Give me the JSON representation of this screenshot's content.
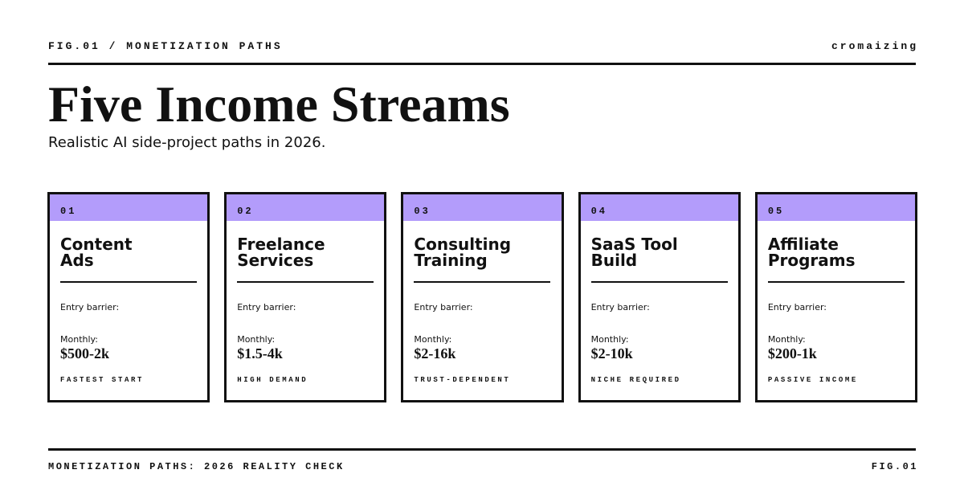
{
  "header": {
    "figure_label": "FIG.01 / MONETIZATION PATHS",
    "brand": "cromaizing",
    "title": "Five Income Streams",
    "subtitle": "Realistic AI side-project paths in 2026."
  },
  "colors": {
    "accent": "#b39cfb",
    "ink": "#111111",
    "background": "#ffffff"
  },
  "cards": [
    {
      "number": "01",
      "title_line1": "Content",
      "title_line2": "Ads",
      "entry_label": "Entry barrier:",
      "monthly_label": "Monthly:",
      "monthly_value": "$500-2k",
      "tag": "FASTEST START"
    },
    {
      "number": "02",
      "title_line1": "Freelance",
      "title_line2": "Services",
      "entry_label": "Entry barrier:",
      "monthly_label": "Monthly:",
      "monthly_value": "$1.5-4k",
      "tag": "HIGH DEMAND"
    },
    {
      "number": "03",
      "title_line1": "Consulting",
      "title_line2": "Training",
      "entry_label": "Entry barrier:",
      "monthly_label": "Monthly:",
      "monthly_value": "$2-16k",
      "tag": "TRUST-DEPENDENT"
    },
    {
      "number": "04",
      "title_line1": "SaaS Tool",
      "title_line2": "Build",
      "entry_label": "Entry barrier:",
      "monthly_label": "Monthly:",
      "monthly_value": "$2-10k",
      "tag": "NICHE REQUIRED"
    },
    {
      "number": "05",
      "title_line1": "Affiliate",
      "title_line2": "Programs",
      "entry_label": "Entry barrier:",
      "monthly_label": "Monthly:",
      "monthly_value": "$200-1k",
      "tag": "PASSIVE INCOME"
    }
  ],
  "footer": {
    "left": "MONETIZATION PATHS: 2026 REALITY CHECK",
    "right": "FIG.01"
  }
}
